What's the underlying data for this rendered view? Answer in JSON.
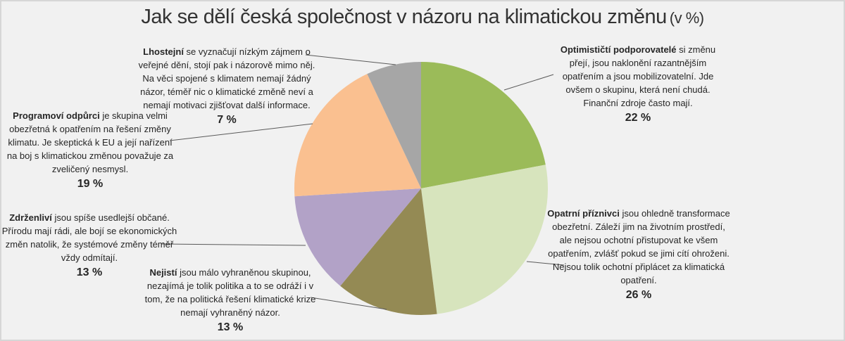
{
  "title": {
    "main": "Jak se dělí česká společnost v názoru na klimatickou změnu",
    "suffix": "(v %)"
  },
  "colors": {
    "background": "#f1f1f1",
    "border": "#d6d6d6",
    "leader_line": "#595959",
    "body_text": "#262626",
    "title_text": "#333333"
  },
  "chart_data": {
    "type": "pie",
    "title": "Jak se dělí česká společnost v názoru na klimatickou změnu (v %)",
    "unit": "%",
    "start_angle_deg": 0,
    "direction": "clockwise",
    "legend": "none",
    "slices": [
      {
        "id": "optimiste",
        "label": "Optimističtí podporovatelé",
        "value": 22,
        "color": "#9BBB59"
      },
      {
        "id": "opatrni",
        "label": "Opatrní příznivci",
        "value": 26,
        "color": "#D7E4BD"
      },
      {
        "id": "nejisti",
        "label": "Nejistí",
        "value": 13,
        "color": "#948A54"
      },
      {
        "id": "zdrzenlivi",
        "label": "Zdrženliví",
        "value": 13,
        "color": "#B2A2C7"
      },
      {
        "id": "odpurci",
        "label": "Programoví odpůrci",
        "value": 19,
        "color": "#FAC090"
      },
      {
        "id": "lhostejni",
        "label": "Lhostejní",
        "value": 7,
        "color": "#A6A6A6"
      }
    ]
  },
  "annotations": [
    {
      "label": "Optimističtí podporovatelé",
      "text": " si změnu přejí, jsou naklonění razantnějším opatřením a jsou mobilizovatelní. Jde ovšem o skupinu, která není chudá. Finanční zdroje často mají.",
      "pct": "22 %"
    },
    {
      "label": "Opatrní příznivci",
      "text": " jsou ohledně transformace obezřetní. Záleží jim na životním prostředí, ale nejsou ochotní přistupovat ke všem opatřením, zvlášť pokud se jimi cítí ohroženi. Nejsou tolik ochotní připlácet za klimatická opatření.",
      "pct": "26 %"
    },
    {
      "label": "Nejistí",
      "text": " jsou málo vyhraněnou skupinou, nezajímá je tolik politika a to se odráží i v tom, že na politická řešení klimatické krize nemají vyhraněný názor.",
      "pct": "13 %"
    },
    {
      "label": "Zdrženliví",
      "text": " jsou spíše usedlejší občané. Přírodu mají rádi, ale bojí se ekonomických změn natolik, že systémové změny téměř vždy odmítají.",
      "pct": "13 %"
    },
    {
      "label": "Programoví odpůrci",
      "text": " je skupina velmi obezřetná k opatřením na řešení změny klimatu. Je skeptická k EU a její nařízení na boj s klimatickou změnou považuje za zveličený nesmysl.",
      "pct": "19 %"
    },
    {
      "label": "Lhostejní",
      "text": " se vyznačují nízkým zájmem o veřejné dění, stojí pak i názorově mimo něj. Na věci spojené s klimatem nemají žádný názor, téměř nic o klimatické změně neví a nemají motivaci zjišťovat další informace.",
      "pct": "7 %"
    }
  ]
}
